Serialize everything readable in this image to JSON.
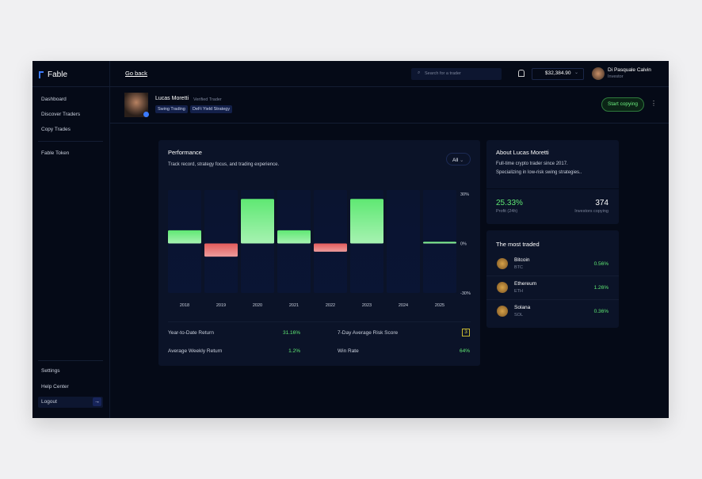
{
  "brand": "Fable",
  "nav": {
    "main": [
      "Dashboard",
      "Discover Traders",
      "Copy Trades"
    ],
    "token": "Fable Token",
    "bottom": [
      "Settings",
      "Help Center",
      "Logout"
    ]
  },
  "topbar": {
    "back": "Go back",
    "search_placeholder": "Search for a trader",
    "balance": "$32,384.90",
    "user": {
      "name": "Di Pasquale Calvin",
      "role": "Investor"
    }
  },
  "trader": {
    "name": "Lucas Moretti",
    "badge": "Verified Trader",
    "tags": [
      "Swing Trading",
      "DeFi Yield Strategy"
    ],
    "action": "Start copying"
  },
  "performance": {
    "title": "Performance",
    "subtitle": "Track record, strategy focus, and trading experience.",
    "filter": "All",
    "chart": {
      "type": "bar",
      "categories": [
        "2018",
        "2019",
        "2020",
        "2021",
        "2022",
        "2023",
        "2024",
        "2025"
      ],
      "values": [
        8,
        -8,
        27,
        8,
        -5,
        27,
        0,
        1
      ],
      "ylim": [
        -30,
        30
      ],
      "yticks": [
        {
          "value": 30,
          "label": "30%"
        },
        {
          "value": 0,
          "label": "0%"
        },
        {
          "value": -30,
          "label": "-30%"
        }
      ],
      "positive_color": "#5fe873",
      "negative_color": "#e25b5b"
    },
    "stats": [
      {
        "label": "Year-to-Date Return",
        "value": "31.16%"
      },
      {
        "label": "Average Weekly Return",
        "value": "1.2%"
      },
      {
        "label": "7-Day Average Risk Score",
        "value": "3"
      },
      {
        "label": "Win Rate",
        "value": "64%"
      }
    ]
  },
  "about": {
    "title": "About Lucas Moretti",
    "text": [
      "Full-time crypto trader since 2017.",
      "Specializing in low-risk swing strategies.."
    ],
    "profit": {
      "value": "25.33%",
      "label": "Profit (24h)"
    },
    "investors": {
      "value": "374",
      "label": "Investors copying"
    }
  },
  "most_traded": {
    "title": "The most traded",
    "items": [
      {
        "name": "Bitcoin",
        "symbol": "BTC",
        "change": "0.56%"
      },
      {
        "name": "Ethereum",
        "symbol": "ETH",
        "change": "1.26%"
      },
      {
        "name": "Solana",
        "symbol": "SOL",
        "change": "0.36%"
      }
    ]
  }
}
